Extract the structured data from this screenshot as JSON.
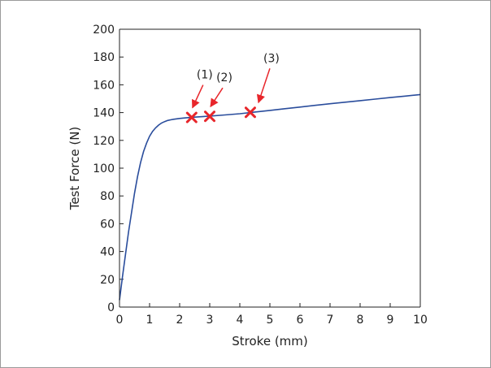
{
  "chart_data": {
    "type": "line",
    "title": "",
    "xlabel": "Stroke (mm)",
    "ylabel": "Test Force (N)",
    "xlim": [
      0,
      10
    ],
    "ylim": [
      0,
      200
    ],
    "xticks": [
      0,
      1,
      2,
      3,
      4,
      5,
      6,
      7,
      8,
      9,
      10
    ],
    "yticks": [
      0,
      20,
      40,
      60,
      80,
      100,
      120,
      140,
      160,
      180,
      200
    ],
    "grid": false,
    "series": [
      {
        "color": "#2a4d9c",
        "x": [
          0,
          0.1,
          0.2,
          0.3,
          0.4,
          0.5,
          0.6,
          0.7,
          0.8,
          0.9,
          1.0,
          1.1,
          1.2,
          1.3,
          1.4,
          1.5,
          1.6,
          1.7,
          1.8,
          1.9,
          2.0,
          2.2,
          2.4,
          2.6,
          2.8,
          3.0,
          3.5,
          4.0,
          4.5,
          5.0,
          5.5,
          6.0,
          6.5,
          7.0,
          7.5,
          8.0,
          8.5,
          9.0,
          9.5,
          10.0
        ],
        "y": [
          5,
          22,
          38,
          54,
          68,
          82,
          94,
          104,
          112,
          118,
          123,
          126.5,
          129,
          131,
          132.5,
          133.5,
          134.3,
          134.8,
          135.2,
          135.5,
          135.8,
          136.2,
          136.6,
          136.9,
          137.2,
          137.5,
          138.3,
          139.2,
          140.4,
          141.6,
          142.8,
          144,
          145.2,
          146.4,
          147.5,
          148.6,
          149.7,
          150.8,
          151.9,
          153
        ]
      }
    ],
    "markers": [
      {
        "label": "(1)",
        "x": 2.4,
        "y": 136.5
      },
      {
        "label": "(2)",
        "x": 3.0,
        "y": 137.3
      },
      {
        "label": "(3)",
        "x": 4.35,
        "y": 140.2
      }
    ],
    "marker_color": "#e8262b"
  }
}
